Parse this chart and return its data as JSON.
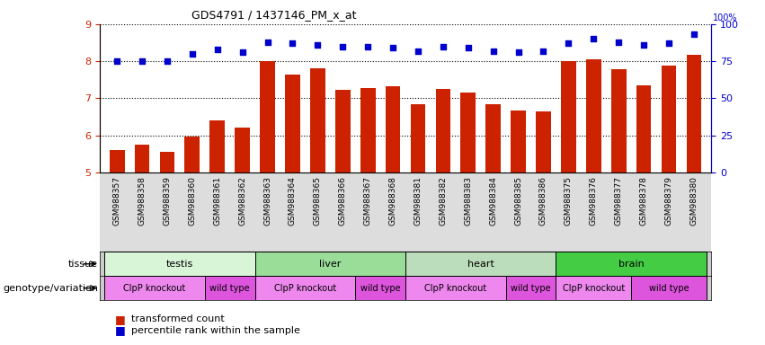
{
  "title": "GDS4791 / 1437146_PM_x_at",
  "samples": [
    "GSM988357",
    "GSM988358",
    "GSM988359",
    "GSM988360",
    "GSM988361",
    "GSM988362",
    "GSM988363",
    "GSM988364",
    "GSM988365",
    "GSM988366",
    "GSM988367",
    "GSM988368",
    "GSM988381",
    "GSM988382",
    "GSM988383",
    "GSM988384",
    "GSM988385",
    "GSM988386",
    "GSM988375",
    "GSM988376",
    "GSM988377",
    "GSM988378",
    "GSM988379",
    "GSM988380"
  ],
  "bar_values": [
    5.6,
    5.75,
    5.55,
    5.98,
    6.4,
    6.22,
    8.0,
    7.65,
    7.8,
    7.22,
    7.28,
    7.32,
    6.85,
    7.25,
    7.15,
    6.85,
    6.68,
    6.65,
    8.0,
    8.05,
    7.78,
    7.35,
    7.88,
    8.18
  ],
  "percentile_values": [
    75,
    75,
    75,
    80,
    83,
    81,
    88,
    87,
    86,
    85,
    85,
    84,
    82,
    85,
    84,
    82,
    81,
    82,
    87,
    90,
    88,
    86,
    87,
    93
  ],
  "bar_color": "#cc2200",
  "dot_color": "#0000cc",
  "ylim_left": [
    5,
    9
  ],
  "ylim_right": [
    0,
    100
  ],
  "yticks_left": [
    5,
    6,
    7,
    8,
    9
  ],
  "yticks_right": [
    0,
    25,
    50,
    75,
    100
  ],
  "tissue_groups": [
    {
      "label": "testis",
      "start": 0,
      "end": 6,
      "color": "#d8f5d8"
    },
    {
      "label": "liver",
      "start": 6,
      "end": 12,
      "color": "#99dd99"
    },
    {
      "label": "heart",
      "start": 12,
      "end": 18,
      "color": "#bbddbb"
    },
    {
      "label": "brain",
      "start": 18,
      "end": 24,
      "color": "#44cc44"
    }
  ],
  "genotype_groups": [
    {
      "label": "ClpP knockout",
      "start": 0,
      "end": 4,
      "color": "#ee88ee"
    },
    {
      "label": "wild type",
      "start": 4,
      "end": 6,
      "color": "#dd55dd"
    },
    {
      "label": "ClpP knockout",
      "start": 6,
      "end": 10,
      "color": "#ee88ee"
    },
    {
      "label": "wild type",
      "start": 10,
      "end": 12,
      "color": "#dd55dd"
    },
    {
      "label": "ClpP knockout",
      "start": 12,
      "end": 16,
      "color": "#ee88ee"
    },
    {
      "label": "wild type",
      "start": 16,
      "end": 18,
      "color": "#dd55dd"
    },
    {
      "label": "ClpP knockout",
      "start": 18,
      "end": 21,
      "color": "#ee88ee"
    },
    {
      "label": "wild type",
      "start": 21,
      "end": 24,
      "color": "#dd55dd"
    }
  ],
  "legend_bar_label": "transformed count",
  "legend_dot_label": "percentile rank within the sample",
  "bg_color": "#ffffff",
  "xlabel_bg_color": "#dddddd",
  "right_axis_label": "100%"
}
